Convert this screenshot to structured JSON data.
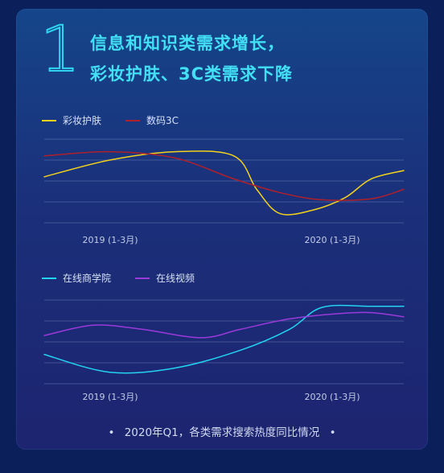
{
  "header": {
    "number": "1",
    "title_line1": "信息和知识类需求增长，",
    "title_line2": "彩妆护肤、3C类需求下降"
  },
  "footer": {
    "bullet_left": "•",
    "caption": "2020年Q1，各类需求搜索热度同比情况",
    "bullet_right": "•"
  },
  "chart_data": [
    {
      "type": "line",
      "categories": [
        "2019 (1-3月)",
        "2020 (1-3月)"
      ],
      "legend_placement": "top-left",
      "grid": true,
      "ylim": [
        0,
        4
      ],
      "series": [
        {
          "name": "彩妆护肤",
          "color": "#f2d21c",
          "points": [
            [
              0.0,
              2.2
            ],
            [
              0.2,
              3.0
            ],
            [
              0.4,
              3.4
            ],
            [
              0.58,
              3.2
            ],
            [
              0.65,
              1.6
            ],
            [
              0.72,
              0.45
            ],
            [
              0.82,
              0.6
            ],
            [
              0.92,
              1.2
            ],
            [
              1.0,
              2.1
            ],
            [
              1.1,
              2.5
            ]
          ]
        },
        {
          "name": "数码3C",
          "color": "#b0202a",
          "points": [
            [
              0.0,
              3.2
            ],
            [
              0.2,
              3.4
            ],
            [
              0.4,
              3.1
            ],
            [
              0.58,
              2.1
            ],
            [
              0.72,
              1.45
            ],
            [
              0.85,
              1.1
            ],
            [
              1.0,
              1.15
            ],
            [
              1.1,
              1.6
            ]
          ]
        }
      ]
    },
    {
      "type": "line",
      "categories": [
        "2019 (1-3月)",
        "2020 (1-3月)"
      ],
      "legend_placement": "top-left",
      "grid": true,
      "ylim": [
        0,
        4
      ],
      "series": [
        {
          "name": "在线商学院",
          "color": "#22d3f2",
          "points": [
            [
              0.0,
              1.4
            ],
            [
              0.2,
              0.55
            ],
            [
              0.4,
              0.75
            ],
            [
              0.6,
              1.6
            ],
            [
              0.75,
              2.6
            ],
            [
              0.85,
              3.65
            ],
            [
              1.0,
              3.7
            ],
            [
              1.1,
              3.7
            ]
          ]
        },
        {
          "name": "在线视频",
          "color": "#9a3ad8",
          "points": [
            [
              0.0,
              2.3
            ],
            [
              0.15,
              2.8
            ],
            [
              0.3,
              2.6
            ],
            [
              0.48,
              2.2
            ],
            [
              0.6,
              2.6
            ],
            [
              0.75,
              3.1
            ],
            [
              0.9,
              3.35
            ],
            [
              1.0,
              3.4
            ],
            [
              1.1,
              3.2
            ]
          ]
        }
      ]
    }
  ]
}
